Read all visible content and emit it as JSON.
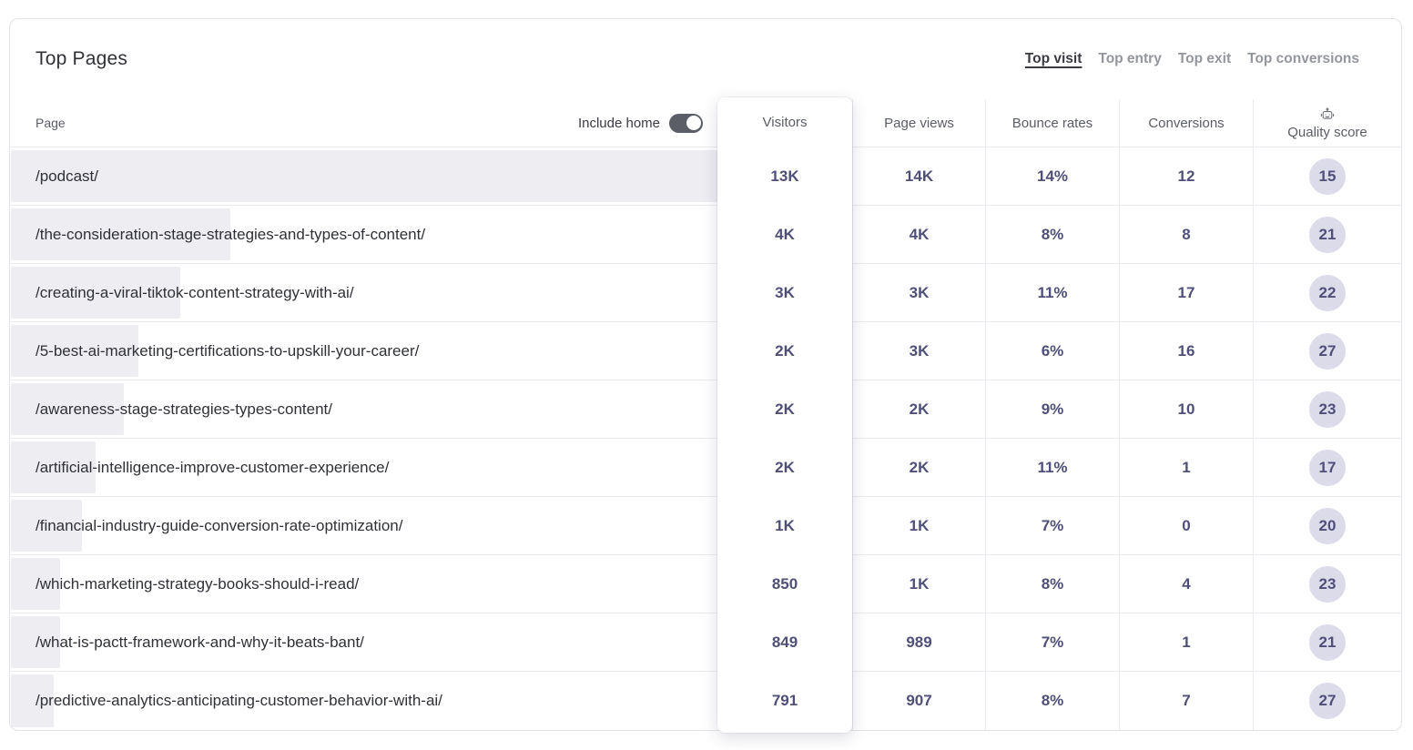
{
  "header": {
    "title": "Top Pages",
    "tabs": [
      "Top visit",
      "Top entry",
      "Top exit",
      "Top conversions"
    ],
    "active_tab": "Top visit"
  },
  "table": {
    "page_header": "Page",
    "include_home_label": "Include home",
    "include_home_on": true,
    "columns": {
      "visitors": "Visitors",
      "page_views": "Page views",
      "bounce_rates": "Bounce rates",
      "conversions": "Conversions",
      "quality_score": "Quality score"
    },
    "quality_icon": "robot-icon",
    "rows": [
      {
        "page": "/podcast/",
        "visitors": "13K",
        "page_views": "14K",
        "bounce_rate": "14%",
        "conversions": "12",
        "quality_score": "15",
        "bar_pct": 100
      },
      {
        "page": "/the-consideration-stage-strategies-and-types-of-content/",
        "visitors": "4K",
        "page_views": "4K",
        "bounce_rate": "8%",
        "conversions": "8",
        "quality_score": "21",
        "bar_pct": 31
      },
      {
        "page": "/creating-a-viral-tiktok-content-strategy-with-ai/",
        "visitors": "3K",
        "page_views": "3K",
        "bounce_rate": "11%",
        "conversions": "17",
        "quality_score": "22",
        "bar_pct": 24
      },
      {
        "page": "/5-best-ai-marketing-certifications-to-upskill-your-career/",
        "visitors": "2K",
        "page_views": "3K",
        "bounce_rate": "6%",
        "conversions": "16",
        "quality_score": "27",
        "bar_pct": 18
      },
      {
        "page": "/awareness-stage-strategies-types-content/",
        "visitors": "2K",
        "page_views": "2K",
        "bounce_rate": "9%",
        "conversions": "10",
        "quality_score": "23",
        "bar_pct": 16
      },
      {
        "page": "/artificial-intelligence-improve-customer-experience/",
        "visitors": "2K",
        "page_views": "2K",
        "bounce_rate": "11%",
        "conversions": "1",
        "quality_score": "17",
        "bar_pct": 12
      },
      {
        "page": "/financial-industry-guide-conversion-rate-optimization/",
        "visitors": "1K",
        "page_views": "1K",
        "bounce_rate": "7%",
        "conversions": "0",
        "quality_score": "20",
        "bar_pct": 10
      },
      {
        "page": "/which-marketing-strategy-books-should-i-read/",
        "visitors": "850",
        "page_views": "1K",
        "bounce_rate": "8%",
        "conversions": "4",
        "quality_score": "23",
        "bar_pct": 7
      },
      {
        "page": "/what-is-pactt-framework-and-why-it-beats-bant/",
        "visitors": "849",
        "page_views": "989",
        "bounce_rate": "7%",
        "conversions": "1",
        "quality_score": "21",
        "bar_pct": 7
      },
      {
        "page": "/predictive-analytics-anticipating-customer-behavior-with-ai/",
        "visitors": "791",
        "page_views": "907",
        "bounce_rate": "8%",
        "conversions": "7",
        "quality_score": "27",
        "bar_pct": 6
      }
    ]
  },
  "colors": {
    "value_text": "#4f4f7a",
    "bar_fill": "#ededf2",
    "badge_bg": "#dcdbe9",
    "row_border": "#ebebef",
    "card_border": "#e2e3e8",
    "toggle_on": "#5b5e66",
    "text_gray": "#5a5d64",
    "tab_inactive": "#94969e"
  }
}
